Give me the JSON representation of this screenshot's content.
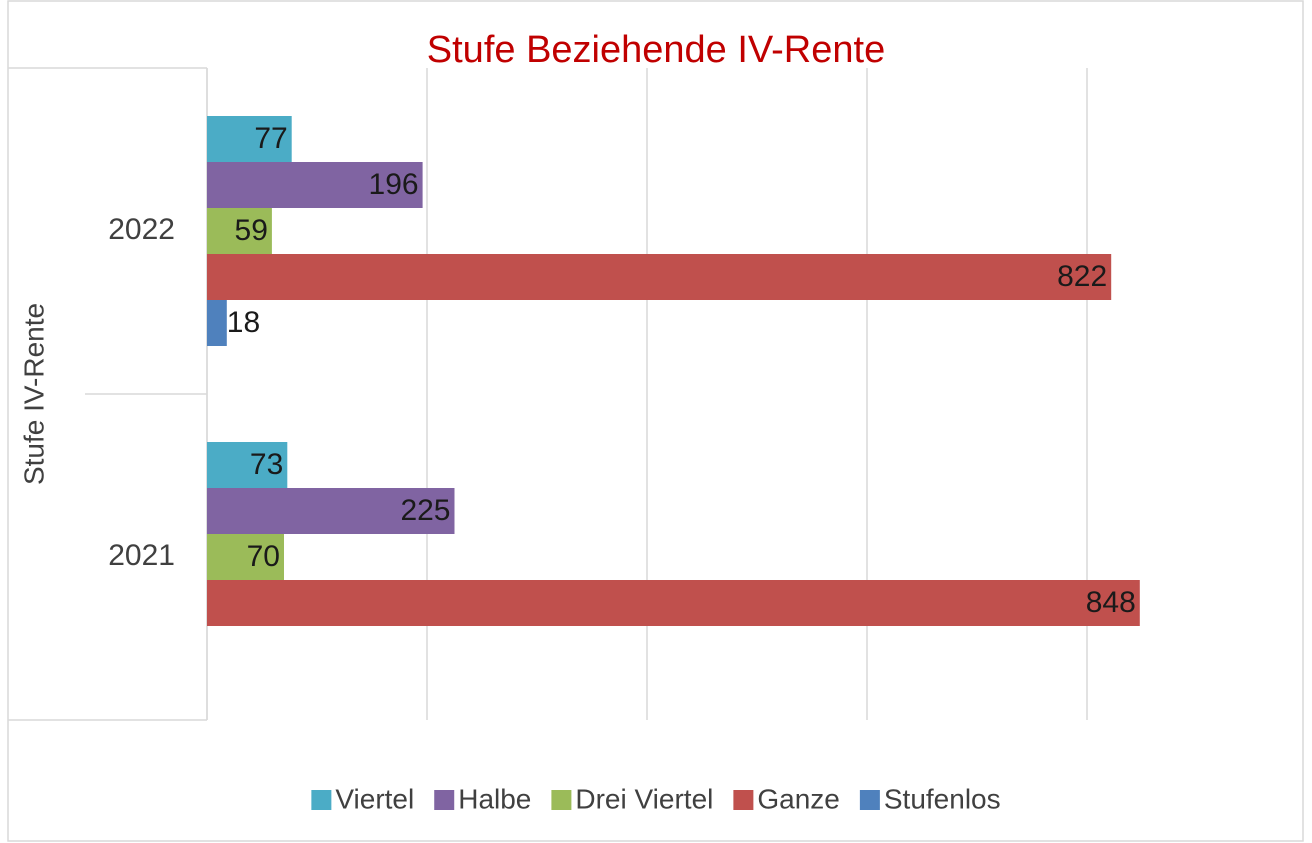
{
  "chart_data": {
    "type": "bar",
    "orientation": "horizontal",
    "title": "Stufe Beziehende IV-Rente",
    "y_label": "Stufe IV-Rente",
    "categories": [
      "2022",
      "2021"
    ],
    "series": [
      {
        "name": "Viertel",
        "color": "#4bacc6",
        "values": [
          77,
          73
        ]
      },
      {
        "name": "Halbe",
        "color": "#8064a2",
        "values": [
          196,
          225
        ]
      },
      {
        "name": "Drei Viertel",
        "color": "#9bbb59",
        "values": [
          59,
          70
        ]
      },
      {
        "name": "Ganze",
        "color": "#c0504d",
        "values": [
          822,
          848
        ]
      },
      {
        "name": "Stufenlos",
        "color": "#4f81bd",
        "values": [
          18,
          null
        ]
      }
    ],
    "xlim": [
      0,
      900
    ],
    "xticks": [
      0,
      200,
      400,
      600,
      800
    ],
    "grid": true,
    "legend": "bottom",
    "title_color": "#c00000"
  }
}
